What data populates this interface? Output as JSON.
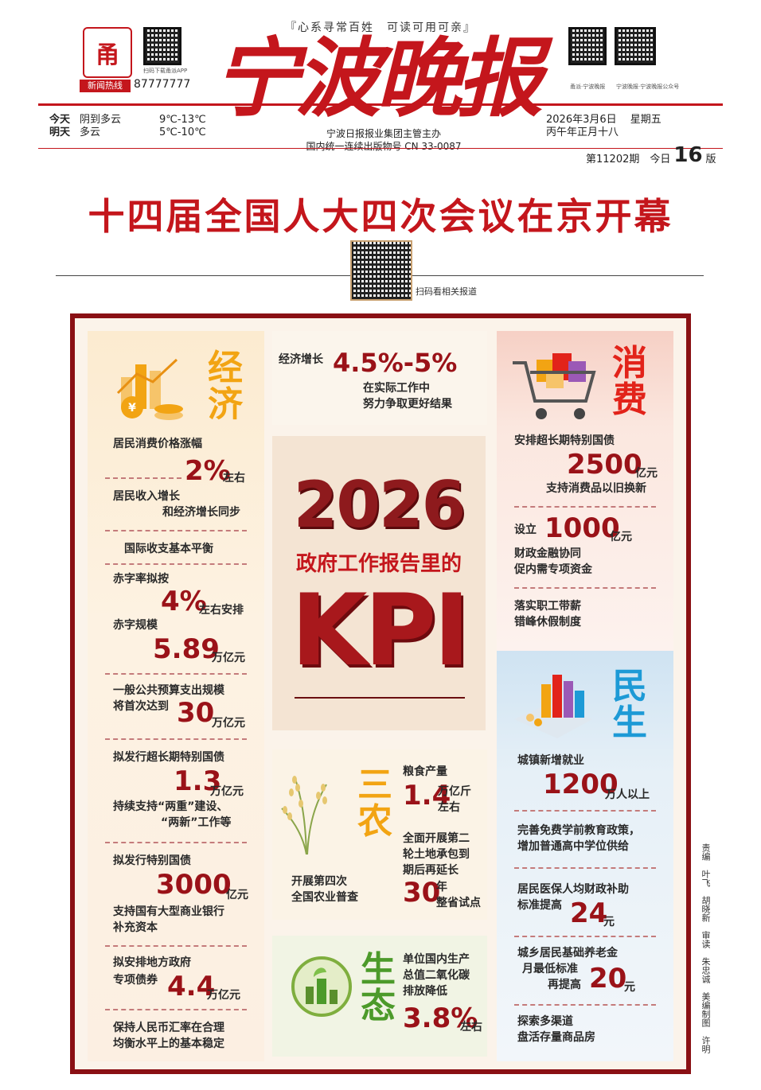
{
  "masthead": {
    "logo_char": "甬",
    "hotline_label": "新闻热线",
    "hotline_number": "87777777",
    "app_caption": "扫码下载甬派APP",
    "slogan": "『心系寻常百姓　可读可用可亲』",
    "paper_name": "宁波晚报",
    "publisher_line1": "宁波日报报业集团主管主办",
    "publisher_line2": "国内统一连续出版物号 CN 33-0087",
    "qr_caption_1": "甬派·宁波晚报",
    "qr_caption_2": "宁波晚报·宁波晚报公众号",
    "weather": [
      {
        "day": "今天",
        "cond": "阴到多云",
        "temp": "9℃-13℃"
      },
      {
        "day": "明天",
        "cond": "多云",
        "temp": "5℃-10℃"
      }
    ],
    "date": "2026年3月6日",
    "weekday": "星期五",
    "lunar": "丙午年正月十八",
    "issue_prefix": "第11202期　今日",
    "issue_pages": "16",
    "issue_suffix": "版"
  },
  "headline": {
    "title": "十四届全国人大四次会议在京开幕",
    "qr_caption": "扫码看相关报道"
  },
  "economy": {
    "title": "经济",
    "item1_text": "居民消费价格涨幅",
    "item1_num": "2%",
    "item1_unit": "左右",
    "item2_line1": "居民收入增长",
    "item2_line2": "和经济增长同步",
    "item3": "国际收支基本平衡",
    "item4_line1": "赤字率拟按",
    "item4_num": "4%",
    "item4_unit": "左右安排",
    "item4_line2": "赤字规模",
    "item4_num2": "5.89",
    "item4_unit2": "万亿元",
    "item5_line1": "一般公共预算支出规模",
    "item5_line2": "将首次达到",
    "item5_num": "30",
    "item5_unit": "万亿元",
    "item6_line1": "拟发行超长期特别国债",
    "item6_num": "1.3",
    "item6_unit": "万亿元",
    "item6_line2": "持续支持“两重”建设、",
    "item6_line3": "“两新”工作等",
    "item7_line1": "拟发行特别国债",
    "item7_num": "3000",
    "item7_unit": "亿元",
    "item7_line2": "支持国有大型商业银行",
    "item7_line3": "补充资本",
    "item8_line1": "拟安排地方政府",
    "item8_line2": "专项债券",
    "item8_num": "4.4",
    "item8_unit": "万亿元",
    "item9_line1": "保持人民币汇率在合理",
    "item9_line2": "均衡水平上的基本稳定"
  },
  "growth": {
    "label": "经济增长",
    "num": "4.5%-5%",
    "line1": "在实际工作中",
    "line2": "努力争取更好结果"
  },
  "kpi": {
    "year": "2026",
    "subtitle": "政府工作报告里的",
    "big": "KPI"
  },
  "sannong": {
    "title": "三农",
    "left_line1": "开展第四次",
    "left_line2": "全国农业普查",
    "grain_label": "粮食产量",
    "grain_num": "1.4",
    "grain_unit": "万亿斤",
    "grain_suffix": "左右",
    "land_line1": "全面开展第二",
    "land_line2": "轮土地承包到",
    "land_line3": "期后再延长",
    "land_num": "30",
    "land_unit": "年",
    "land_suffix": "整省试点"
  },
  "ecology": {
    "title": "生态",
    "line1": "单位国内生产",
    "line2": "总值二氧化碳",
    "line3": "排放降低",
    "num": "3.8%",
    "unit": "左右"
  },
  "consumption": {
    "title": "消费",
    "item1_line1": "安排超长期特别国债",
    "item1_num": "2500",
    "item1_unit": "亿元",
    "item1_line2": "支持消费品以旧换新",
    "item2_prefix": "设立",
    "item2_num": "1000",
    "item2_unit": "亿元",
    "item2_line1": "财政金融协同",
    "item2_line2": "促内需专项资金",
    "item3_line1": "落实职工带薪",
    "item3_line2": "错峰休假制度"
  },
  "livelihood": {
    "title": "民生",
    "item1_line1": "城镇新增就业",
    "item1_num": "1200",
    "item1_unit": "万人以上",
    "item2_line1": "完善免费学前教育政策，",
    "item2_line2": "增加普通高中学位供给",
    "item3_line1": "居民医保人均财政补助",
    "item3_line2": "标准提高",
    "item3_num": "24",
    "item3_unit": "元",
    "item4_line1": "城乡居民基础养老金",
    "item4_line2": "月最低标准",
    "item4_line3": "再提高",
    "item4_num": "20",
    "item4_unit": "元",
    "item5_line1": "探索多渠道",
    "item5_line2": "盘活存量商品房"
  },
  "editors": "责编　叶飞　胡晓新　审读　朱忠诚　美编制图　许明",
  "colors": {
    "brand_red": "#c4161c",
    "dark_red": "#8a1014",
    "orange": "#f2a413",
    "blue": "#1d9ad6",
    "green": "#4c9a2a"
  }
}
